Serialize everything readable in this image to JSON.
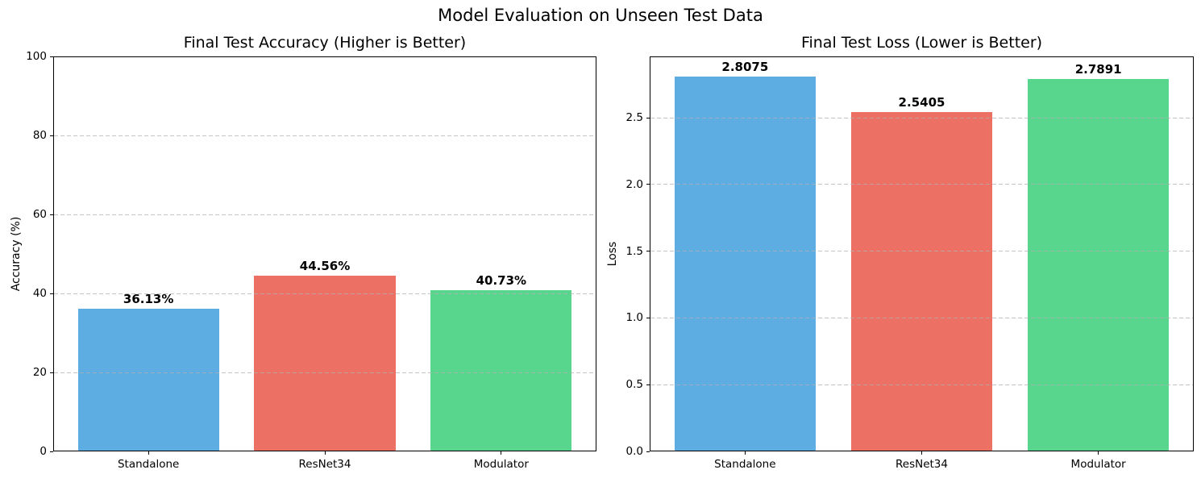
{
  "suptitle": "Model Evaluation on Unseen Test Data",
  "colors": {
    "background": "#ffffff",
    "text": "#000000",
    "grid": "rgba(176,176,176,0.75)",
    "spine": "#000000",
    "bar_blue": "#5DADE2",
    "bar_red": "#EC7063",
    "bar_green": "#58D68D"
  },
  "chart_data": [
    {
      "type": "bar",
      "title": "Final Test Accuracy (Higher is Better)",
      "xlabel": "",
      "ylabel": "Accuracy (%)",
      "categories": [
        "Standalone",
        "ResNet34",
        "Modulator"
      ],
      "values": [
        36.13,
        44.56,
        40.73
      ],
      "value_labels": [
        "36.13%",
        "44.56%",
        "40.73%"
      ],
      "ylim": [
        0,
        100
      ],
      "yticks": [
        0,
        20,
        40,
        60,
        80,
        100
      ],
      "ytick_labels": [
        "0",
        "20",
        "40",
        "60",
        "80",
        "100"
      ],
      "grid": true,
      "legend": null,
      "bar_colors": [
        "#5DADE2",
        "#EC7063",
        "#58D68D"
      ]
    },
    {
      "type": "bar",
      "title": "Final Test Loss (Lower is Better)",
      "xlabel": "",
      "ylabel": "Loss",
      "categories": [
        "Standalone",
        "ResNet34",
        "Modulator"
      ],
      "values": [
        2.8075,
        2.5405,
        2.7891
      ],
      "value_labels": [
        "2.8075",
        "2.5405",
        "2.7891"
      ],
      "ylim": [
        0,
        2.96
      ],
      "yticks": [
        0.0,
        0.5,
        1.0,
        1.5,
        2.0,
        2.5
      ],
      "ytick_labels": [
        "0.0",
        "0.5",
        "1.0",
        "1.5",
        "2.0",
        "2.5"
      ],
      "grid": true,
      "legend": null,
      "bar_colors": [
        "#5DADE2",
        "#EC7063",
        "#58D68D"
      ]
    }
  ]
}
